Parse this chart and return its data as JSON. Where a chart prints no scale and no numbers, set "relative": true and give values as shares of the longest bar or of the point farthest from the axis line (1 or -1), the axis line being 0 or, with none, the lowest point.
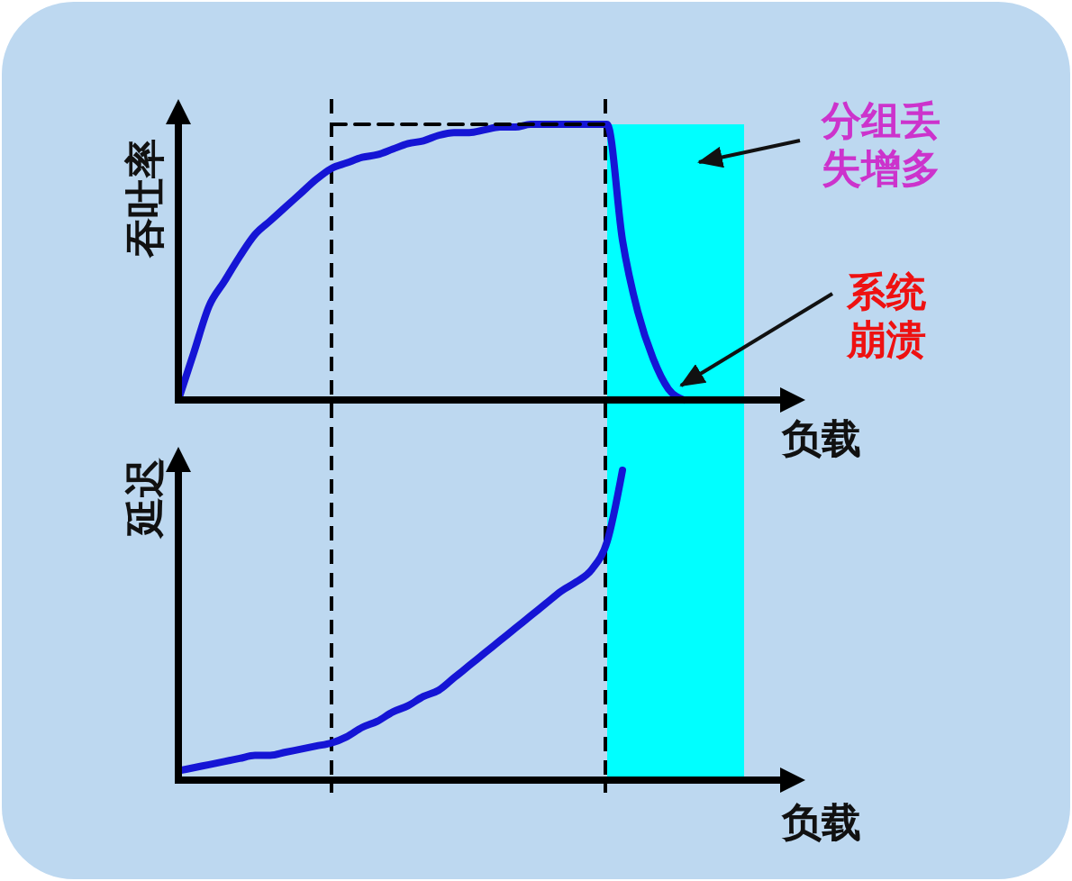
{
  "chart_data": [
    {
      "type": "line",
      "ylabel": "吞吐率",
      "xlabel": "负载",
      "relative": true,
      "categories": [
        null,
        null,
        null,
        null,
        null,
        null,
        null,
        null,
        null,
        null,
        null,
        null,
        null,
        null,
        null,
        null,
        null,
        null,
        null,
        null,
        null,
        null,
        null,
        null,
        null,
        null,
        null,
        null,
        null,
        null,
        null,
        null,
        null,
        null,
        null,
        null,
        null,
        null,
        null,
        null,
        null
      ],
      "series": [
        {
          "color": "#1515d5",
          "values": [
            0,
            0.17,
            0.34,
            0.43,
            0.52,
            0.6,
            0.65,
            0.7,
            0.75,
            0.8,
            0.84,
            0.86,
            0.88,
            0.89,
            0.91,
            0.93,
            0.94,
            0.96,
            0.97,
            0.97,
            0.98,
            0.99,
            0.99,
            1,
            1,
            1,
            1,
            1,
            1,
            0.58,
            0.32,
            0.15,
            0.04,
            0,
            null,
            null,
            null,
            null,
            null,
            null,
            null
          ]
        },
        {
          "color": "#000000",
          "line_style": "dashed",
          "values": [
            null,
            null,
            null,
            null,
            null,
            null,
            null,
            null,
            null,
            null,
            1,
            1,
            1,
            1,
            1,
            1,
            1,
            1,
            1,
            1,
            1,
            1,
            1,
            1,
            1,
            1,
            1,
            1,
            1,
            null,
            null,
            null,
            null,
            null,
            null,
            null,
            null,
            null,
            null,
            null,
            null
          ]
        }
      ],
      "annotations": [
        "分组丢失增多",
        "系统崩溃"
      ]
    },
    {
      "type": "line",
      "ylabel": "延迟",
      "xlabel": "负载",
      "relative": true,
      "categories": [
        null,
        null,
        null,
        null,
        null,
        null,
        null,
        null,
        null,
        null,
        null,
        null,
        null,
        null,
        null,
        null,
        null,
        null,
        null,
        null,
        null,
        null,
        null,
        null,
        null,
        null,
        null,
        null,
        null,
        null,
        null,
        null,
        null,
        null,
        null,
        null,
        null,
        null,
        null,
        null,
        null
      ],
      "series": [
        {
          "color": "#1515d5",
          "values": [
            0.03,
            0.04,
            0.05,
            0.06,
            0.07,
            0.08,
            0.08,
            0.09,
            0.1,
            0.11,
            0.12,
            0.14,
            0.17,
            0.19,
            0.22,
            0.24,
            0.27,
            0.29,
            0.33,
            0.37,
            0.41,
            0.45,
            0.49,
            0.53,
            0.57,
            0.61,
            0.64,
            0.68,
            0.77,
            1,
            null,
            null,
            null,
            null,
            null,
            null,
            null,
            null,
            null,
            null,
            null
          ]
        }
      ]
    }
  ]
}
